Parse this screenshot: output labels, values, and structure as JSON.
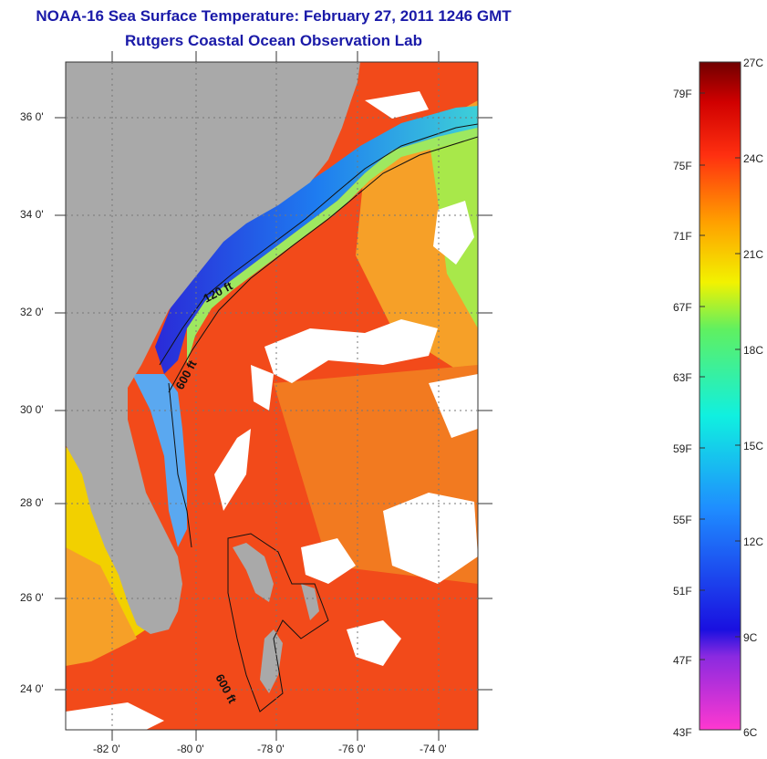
{
  "title": "NOAA-16 Sea Surface Temperature:  February 27, 2011 1246 GMT",
  "subtitle": "Rutgers Coastal Ocean Observation Lab",
  "map": {
    "lat_labels": [
      "36 0'",
      "34 0'",
      "32 0'",
      "30 0'",
      "28 0'",
      "26 0'",
      "24 0'"
    ],
    "lon_labels": [
      "-82 0'",
      "-80 0'",
      "-78 0'",
      "-76 0'",
      "-74 0'"
    ],
    "lat_range": [
      23,
      37
    ],
    "lon_range": [
      -83,
      -73
    ],
    "contour_labels": [
      "120 ft",
      "600 ft",
      "600 ft"
    ],
    "colors": {
      "land": "#a9a9a9",
      "cloud": "#ffffff",
      "gulf_stream": "#f0401c"
    }
  },
  "colorbar": {
    "celsius_labels": [
      "27C",
      "24C",
      "21C",
      "18C",
      "15C",
      "12C",
      "9C",
      "6C"
    ],
    "fahrenheit_labels": [
      "79F",
      "75F",
      "71F",
      "67F",
      "63F",
      "59F",
      "55F",
      "51F",
      "47F",
      "43F"
    ],
    "range_celsius": [
      6,
      27
    ]
  }
}
